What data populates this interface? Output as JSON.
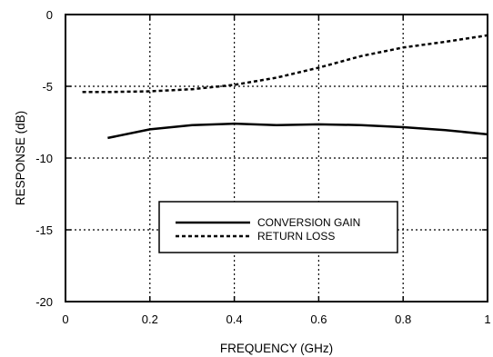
{
  "chart_data": {
    "type": "line",
    "title": "",
    "xlabel": "FREQUENCY (GHz)",
    "ylabel": "RESPONSE  (dB)",
    "xlim": [
      0,
      1
    ],
    "ylim": [
      -20,
      0
    ],
    "xticks": [
      0,
      0.2,
      0.4,
      0.6,
      0.8,
      1
    ],
    "xtick_labels": [
      "0",
      "0.2",
      "0.4",
      "0.6",
      "0.8",
      "1"
    ],
    "yticks": [
      -20,
      -15,
      -10,
      -5,
      0
    ],
    "ytick_labels": [
      "-20",
      "-15",
      "-10",
      "-5",
      "0"
    ],
    "grid": true,
    "grid_style": "dotted",
    "legend_position": "lower-center",
    "series": [
      {
        "name": "CONVERSION GAIN",
        "style": "solid",
        "color": "#000000",
        "x": [
          0.1,
          0.2,
          0.3,
          0.4,
          0.5,
          0.6,
          0.7,
          0.8,
          0.9,
          1.0
        ],
        "y": [
          -8.6,
          -8.0,
          -7.7,
          -7.6,
          -7.7,
          -7.65,
          -7.7,
          -7.85,
          -8.05,
          -8.35
        ]
      },
      {
        "name": "RETURN LOSS",
        "style": "dashed",
        "color": "#000000",
        "x": [
          0.04,
          0.1,
          0.2,
          0.3,
          0.4,
          0.5,
          0.6,
          0.7,
          0.8,
          0.9,
          1.0
        ],
        "y": [
          -5.4,
          -5.4,
          -5.35,
          -5.2,
          -4.9,
          -4.4,
          -3.7,
          -2.9,
          -2.3,
          -1.9,
          -1.45
        ]
      }
    ]
  }
}
